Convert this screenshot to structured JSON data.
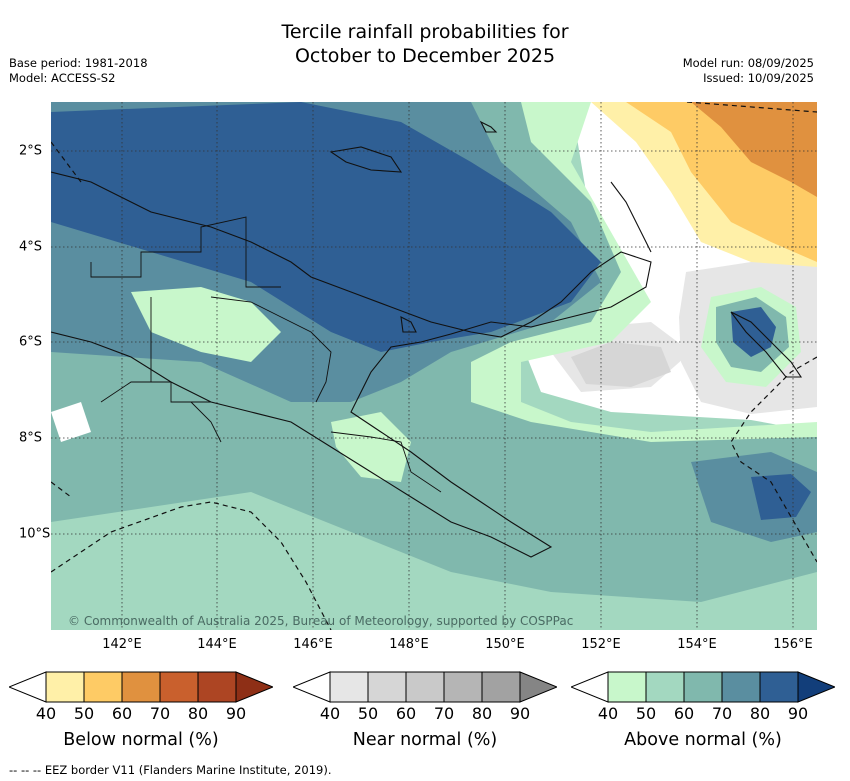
{
  "title_line1": "Tercile rainfall probabilities for",
  "title_line2": "October to December 2025",
  "base_period": "Base period: 1981-2018",
  "model": "Model: ACCESS-S2",
  "model_run": "Model run: 08/09/2025",
  "issued": "Issued: 10/09/2025",
  "x_ticks": [
    "142°E",
    "144°E",
    "146°E",
    "148°E",
    "150°E",
    "152°E",
    "154°E",
    "156°E"
  ],
  "y_ticks": [
    "2°S",
    "4°S",
    "6°S",
    "8°S",
    "10°S"
  ],
  "copyright": "© Commonwealth of Australia 2025, Bureau of Meteorology, supported by COSPPac",
  "colorbars": [
    {
      "label": "Below normal (%)",
      "ticks": [
        "40",
        "50",
        "60",
        "70",
        "80",
        "90"
      ],
      "colors": [
        "#fff0a8",
        "#fecb65",
        "#e0913f",
        "#c9602d",
        "#ad4523",
        "#8e2f16"
      ]
    },
    {
      "label": "Near normal (%)",
      "ticks": [
        "40",
        "50",
        "60",
        "70",
        "80",
        "90"
      ],
      "colors": [
        "#e6e6e6",
        "#d6d6d6",
        "#c9c9c9",
        "#b5b5b5",
        "#a2a2a2",
        "#858585"
      ]
    },
    {
      "label": "Above normal (%)",
      "ticks": [
        "40",
        "50",
        "60",
        "70",
        "80",
        "90"
      ],
      "colors": [
        "#c8f7cb",
        "#a3d8c0",
        "#80b8ad",
        "#5a8ea0",
        "#2f5f94",
        "#123e7a"
      ]
    }
  ],
  "footnote": "-- -- -- EEZ border V11 (Flanders Marine Institute, 2019)."
}
